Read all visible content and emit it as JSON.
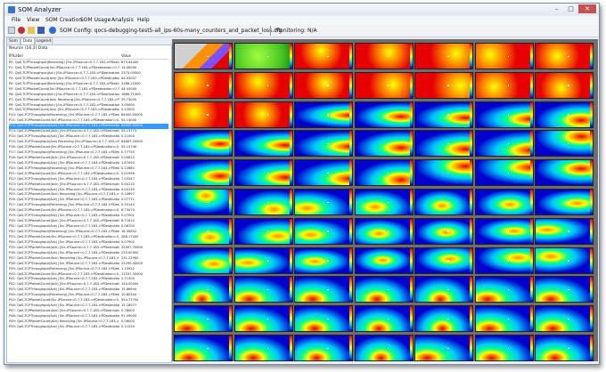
{
  "window": {
    "title": "SOM Analyzer"
  },
  "menu": [
    "File",
    "View",
    "SOM Creation",
    "SOM Usage",
    "Analysis",
    "Help"
  ],
  "toolbar": {
    "config_text": "SOM Config: qocs-debugging-test5-all_ips-60s-many_counters_and_packet_loss.cfg",
    "monitoring_text": "Monitoring: N/A",
    "icons": [
      "new-icon",
      "gear-icon",
      "open-folder-icon",
      "save-icon",
      "info-icon"
    ]
  },
  "tabs": [
    "Som",
    "Data",
    "Legend"
  ],
  "left_panel": {
    "title": "Neuron (16,3) Data",
    "columns": [
      "IP/Label",
      "Value"
    ],
    "rows": [
      {
        "name": "P0: QoS-TCPThroughput(Receiving) [Src-IPSource=0.7.7.183->PDestination=0.7.7.185]",
        "value": "873.44400"
      },
      {
        "name": "P1: QoS-TCPPacketCount(Src-IPSource=0.7.7.183->PDestination=0.7.7.185]",
        "value": "14.40000"
      },
      {
        "name": "P2: QoS-TCPThroughput(Ack) [Src-IPSource=0.7.7.183->PDestination=0.7.7.185]",
        "value": "2375.00000"
      },
      {
        "name": "P3: QoS-TCPPacketCount(Ack) [Src-IPSource=0.7.7.183->PDestination=0.7.7.185]",
        "value": "44.43047"
      },
      {
        "name": "P4: QoS-TCPThroughput(Receiving) [Src-IPSource=0.7.7.183->PDestination=0.7.7.185]",
        "value": "3186.21000"
      },
      {
        "name": "P5: QoS-TCPPacketCount(Src-IPSource=0.7.7.183->PDestination=0.7.7.185]",
        "value": "44.43000"
      },
      {
        "name": "P6: QoS-TCPThroughput(Ack) [Src-IPSource=0.7.7.183->PDestination=0.7.7.185]",
        "value": "1686.71400"
      },
      {
        "name": "P7: QoS-TCPPacketCount(Ack) Receiving [Src-IPSource=0.7.7.183->PDestination=0.7.7.185]",
        "value": "29.73000"
      },
      {
        "name": "P8: QoS-TCPThroughput(Ack) [Src-IPSource=0.7.7.183->PDestination=0.7.7.185]",
        "value": "3.00000"
      },
      {
        "name": "P9: QoS-TCPPacketCount(Ack) [Src-IPSource=0.7.7.183->PDestination=0.7.7.185]",
        "value": "0.12000"
      },
      {
        "name": "P10: QoS-TCPThroughput(Receiving) [Src-IPSource=0.7.7.183->PDestination=0.7.7.185]",
        "value": "64000.00000"
      },
      {
        "name": "P11: QoS-TCPPacketCount(Src-IPSource=0.7.7.183->PDestination=0.7.7.185]",
        "value": "55.13000"
      },
      {
        "name": "P12: QoS-TCPThroughput(Ack) [Src-IPSource=0.7.7.183->PDestination=0.7.7.185]",
        "value": "64000.00000"
      },
      {
        "name": "P13: QoS-TCPPacketCount(Ack) [Src-IPSource=0.7.7.183->PDestination=0.7.7.185]",
        "value": "55.13773"
      },
      {
        "name": "P14: QoS-TCPThroughput(Ack) [Src-IPSource=0.7.7.183->PDestination=0.7.7.185]",
        "value": "0.21000"
      },
      {
        "name": "P15: QoS-TCPThroughput(Ack) Receiving [Src-IPSource=0.7.7.183->PDestination=0.7.7.185]",
        "value": "64887.20000"
      },
      {
        "name": "P16: QoS-TCPPacketCount(Src-IPSource=0.7.7.183->PDestination=0.7.7.185]",
        "value": "55.13740"
      },
      {
        "name": "P17: QoS-TCPThroughput(Receiving) [Src-IPSource=0.7.7.183->PDestination=0.7.7.185]",
        "value": "0.77750"
      },
      {
        "name": "P18: QoS-TCPPacketCount(Ack) [Src-IPSource=0.7.7.183->PDestination=0.7.7.185]",
        "value": "0.00810"
      },
      {
        "name": "P19: QoS-TCPThroughput(Ack) [Src-IPSource=0.7.7.183->PDestination=0.7.7.185]",
        "value": "1.87450"
      },
      {
        "name": "P20: QoS-TCPThroughput(Receiving) [Src-IPSource=0.7.7.183->PDestination=0.7.7.185]",
        "value": "0.12680"
      },
      {
        "name": "P21: QoS-TCPPacketCount(Src-IPSource=0.7.7.183->PDestination=0.7.7.185]",
        "value": "0.01996"
      },
      {
        "name": "P22: QoS-TCPThroughput(Ack) [Src-IPSource=0.7.7.183->PDestination=0.7.7.185]",
        "value": "7.03247"
      },
      {
        "name": "P23: QoS-TCPPacketCount(Ack) [Src-IPSource=0.7.7.183->PDestination=0.7.7.185]",
        "value": "0.04110"
      },
      {
        "name": "P24: QoS-TCPThroughput(Ack) [Src-IPSource=0.7.7.183->PDestination=0.7.7.185]",
        "value": "4.04139"
      },
      {
        "name": "P25: QoS-TCPPacketCount(Ack) Receiving [Src-IPSource=0.7.7.183->PDestination=0.7.7.185]",
        "value": "0.10697"
      },
      {
        "name": "P26: QoS-TCPThroughput(Ack) [Src-IPSource=0.7.7.183->PDestination=0.7.7.185]",
        "value": "0.07771"
      },
      {
        "name": "P27: QoS-TCPThroughput(Receiving) [Src-IPSource=0.7.7.183->PDestination=0.7.7.185]",
        "value": "0.35140"
      },
      {
        "name": "P28: QoS-TCPPacketCount(Src-IPSource=0.7.7.183->PDestination=0.7.7.185]",
        "value": "6.73470"
      },
      {
        "name": "P29: QoS-TCPThroughput(Ack) [Src-IPSource=0.7.7.183->PDestination=0.7.7.185]",
        "value": "0.07001"
      },
      {
        "name": "P30: QoS-TCPPacketCount(Ack) [Src-IPSource=0.7.7.183->PDestination=0.7.7.185]",
        "value": "6.71810"
      },
      {
        "name": "P31: QoS-TCPThroughput(Ack) [Src-IPSource=0.7.7.183->PDestination=0.7.7.185]",
        "value": "0.06700"
      },
      {
        "name": "P32: QoS-TCPThroughput(Receiving) [Src-IPSource=0.7.7.183->PDestination=0.7.7.185]",
        "value": "16.35652"
      },
      {
        "name": "P33: QoS-TCPPacketCount(Src-IPSource=0.7.7.183->PDestination=0.7.7.185]",
        "value": "288.17000"
      },
      {
        "name": "P34: QoS-TCPThroughput(Ack) [Src-IPSource=0.7.7.183->PDestination=0.7.7.185]",
        "value": "0.07900"
      },
      {
        "name": "P35: QoS-TCPPacketCount(Ack) [Src-IPSource=0.7.7.183->PDestination=0.7.7.185]",
        "value": "22907.70000"
      },
      {
        "name": "P36: QoS-TCPThroughput(Ack) [Src-IPSource=0.7.7.183->PDestination=0.7.7.185]",
        "value": "233.00000"
      },
      {
        "name": "P37: QoS-TCPPacketCount(Ack) Receiving [Src-IPSource=0.7.7.183->PDestination=0.7.7.185]",
        "value": "231.22900"
      },
      {
        "name": "P38: QoS-TCPThroughput(Ack) [Src-IPSource=0.7.7.183->PDestination=0.7.7.185]",
        "value": "22290.40000"
      },
      {
        "name": "P39: QoS-TCPThroughput(Receiving) [Src-IPSource=0.7.7.183->PDestination=0.7.7.185]",
        "value": "1.15922"
      },
      {
        "name": "P40: QoS-TCPPacketCount(Src-IPSource=0.7.7.183->PDestination=0.7.7.185]",
        "value": "11537.50000"
      },
      {
        "name": "P41: QoS-TCPThroughput(Ack) [Src-IPSource=0.7.7.183->PDestination=0.7.7.185]",
        "value": "2.71300"
      },
      {
        "name": "P42: QoS-TCPPacketCount(Ack) [Src-IPSource=0.7.7.183->PDestination=0.7.7.185]",
        "value": "154.00000"
      },
      {
        "name": "P43: QoS-TCPThroughput(Ack) [Src-IPSource=0.7.7.183->PDestination=0.7.7.185]",
        "value": "15.66944"
      },
      {
        "name": "P44: QoS-TCPThroughput(Receiving) [Src-IPSource=0.7.7.183->PDestination=0.7.7.185]",
        "value": "10.60344"
      },
      {
        "name": "P45: QoS-TCPPacketCount(Src-IPSource=0.7.7.183->PDestination=0.7.7.185]",
        "value": "554.77700"
      },
      {
        "name": "P46: QoS-TCPThroughput(Ack) [Src-IPSource=0.7.7.183->PDestination=0.7.7.185]",
        "value": "15.18977"
      },
      {
        "name": "P47: QoS-TCPPacketCount(Ack) [Src-IPSource=0.7.7.183->PDestination=0.7.7.185]",
        "value": "0.78000"
      },
      {
        "name": "P48: QoS-TCPThroughput(Ack) [Src-IPSource=0.7.7.183->PDestination=0.7.7.185]",
        "value": "91.49000"
      },
      {
        "name": "P49: QoS-TCPPacketCount(Ack) Receiving [Src-IPSource=0.7.7.183->PDestination=0.7.7.185]",
        "value": "0.06000"
      },
      {
        "name": "P50: QoS-TCPThroughput(Ack) [Src-IPSource=0.7.7.183->PDestination=0.7.7.185]",
        "value": "0.11520"
      }
    ],
    "selected_row": 12
  },
  "som_grid": {
    "columns": 7,
    "rows": 11,
    "colormap": [
      "#0000cc",
      "#00c8ff",
      "#00ff90",
      "#ffff00",
      "#ff9000",
      "#e60000"
    ]
  }
}
